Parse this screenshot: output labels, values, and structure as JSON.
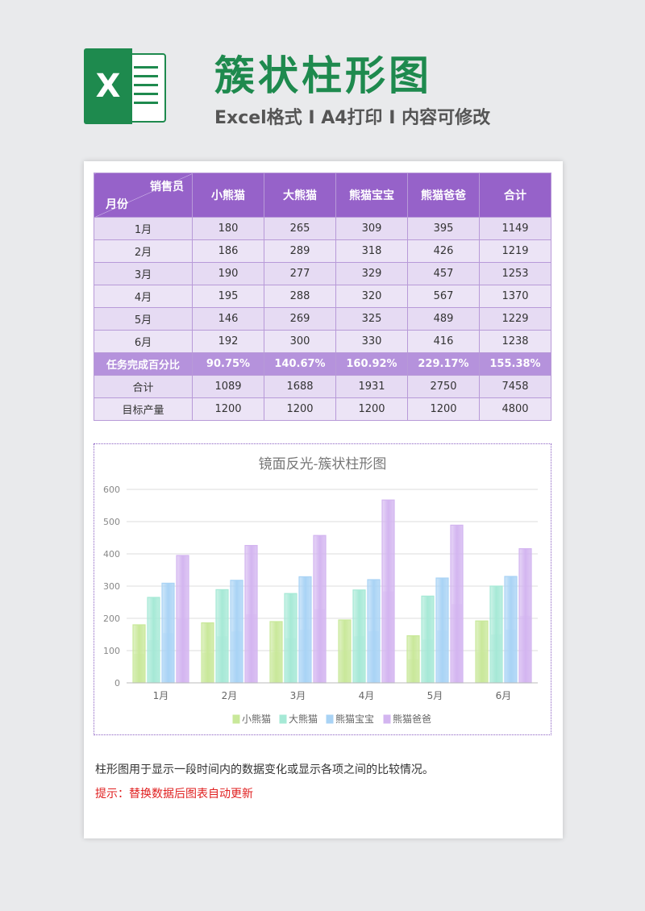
{
  "header": {
    "logo_letter": "X",
    "title": "簇状柱形图",
    "subtitle": "Excel格式 I A4打印 I 内容可修改"
  },
  "table": {
    "corner_top": "销售员",
    "corner_bottom": "月份",
    "columns": [
      "小熊猫",
      "大熊猫",
      "熊猫宝宝",
      "熊猫爸爸",
      "合计"
    ],
    "rows": [
      {
        "label": "1月",
        "values": [
          "180",
          "265",
          "309",
          "395",
          "1149"
        ]
      },
      {
        "label": "2月",
        "values": [
          "186",
          "289",
          "318",
          "426",
          "1219"
        ]
      },
      {
        "label": "3月",
        "values": [
          "190",
          "277",
          "329",
          "457",
          "1253"
        ]
      },
      {
        "label": "4月",
        "values": [
          "195",
          "288",
          "320",
          "567",
          "1370"
        ]
      },
      {
        "label": "5月",
        "values": [
          "146",
          "269",
          "325",
          "489",
          "1229"
        ]
      },
      {
        "label": "6月",
        "values": [
          "192",
          "300",
          "330",
          "416",
          "1238"
        ]
      }
    ],
    "pct_row": {
      "label": "任务完成百分比",
      "values": [
        "90.75%",
        "140.67%",
        "160.92%",
        "229.17%",
        "155.38%"
      ]
    },
    "total_row": {
      "label": "合计",
      "values": [
        "1089",
        "1688",
        "1931",
        "2750",
        "7458"
      ]
    },
    "target_row": {
      "label": "目标产量",
      "values": [
        "1200",
        "1200",
        "1200",
        "1200",
        "4800"
      ]
    }
  },
  "chart_data": {
    "type": "bar",
    "title": "镜面反光-簇状柱形图",
    "categories": [
      "1月",
      "2月",
      "3月",
      "4月",
      "5月",
      "6月"
    ],
    "series": [
      {
        "name": "小熊猫",
        "values": [
          180,
          186,
          190,
          195,
          146,
          192
        ],
        "color": "#c9e89a"
      },
      {
        "name": "大熊猫",
        "values": [
          265,
          289,
          277,
          288,
          269,
          300
        ],
        "color": "#a6e9d6"
      },
      {
        "name": "熊猫宝宝",
        "values": [
          309,
          318,
          329,
          320,
          325,
          330
        ],
        "color": "#a9d3f5"
      },
      {
        "name": "熊猫爸爸",
        "values": [
          395,
          426,
          457,
          567,
          489,
          416
        ],
        "color": "#d3b5f0"
      }
    ],
    "ylim": [
      0,
      600
    ],
    "yticks": [
      0,
      100,
      200,
      300,
      400,
      500,
      600
    ],
    "grid": true,
    "legend": "bottom"
  },
  "note": "柱形图用于显示一段时间内的数据变化或显示各项之间的比较情况。",
  "tip": "提示：替换数据后图表自动更新"
}
